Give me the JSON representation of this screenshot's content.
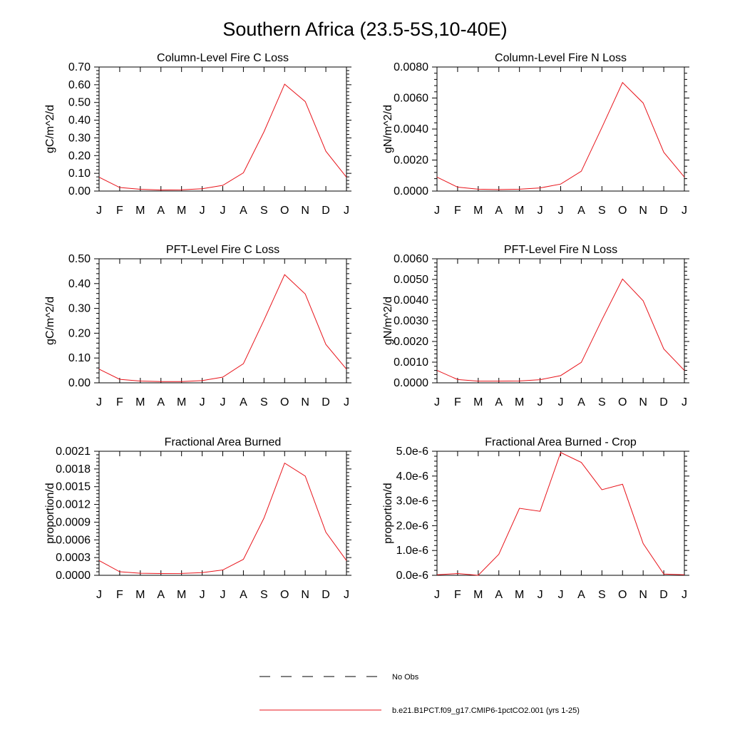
{
  "figure": {
    "title": "Southern Africa (23.5-5S,10-40E)",
    "line_color": "#e8141b",
    "legend": {
      "obs_label": "No Obs",
      "model_label": "b.e21.B1PCT.f09_g17.CMIP6-1pctCO2.001 (yrs 1-25)"
    }
  },
  "chart_data": [
    {
      "type": "line",
      "title": "Column-Level Fire C Loss",
      "ylabel": "gC/m^2/d",
      "categories": [
        "J",
        "F",
        "M",
        "A",
        "M",
        "J",
        "J",
        "A",
        "S",
        "O",
        "N",
        "D",
        "J"
      ],
      "ylim": [
        0,
        0.7
      ],
      "yticks": [
        "0.00",
        "0.10",
        "0.20",
        "0.30",
        "0.40",
        "0.50",
        "0.60",
        "0.70"
      ],
      "series": [
        {
          "values": [
            0.078,
            0.02,
            0.01,
            0.006,
            0.007,
            0.013,
            0.032,
            0.103,
            0.335,
            0.603,
            0.505,
            0.225,
            0.078
          ]
        }
      ]
    },
    {
      "type": "line",
      "title": "Column-Level Fire N Loss",
      "ylabel": "gN/m^2/d",
      "categories": [
        "J",
        "F",
        "M",
        "A",
        "M",
        "J",
        "J",
        "A",
        "S",
        "O",
        "N",
        "D",
        "J"
      ],
      "ylim": [
        0,
        0.008
      ],
      "yticks": [
        "0.0000",
        "0.0020",
        "0.0040",
        "0.0060",
        "0.0080"
      ],
      "series": [
        {
          "values": [
            0.0009,
            0.00025,
            0.00012,
            0.0001,
            0.00012,
            0.0002,
            0.00045,
            0.00128,
            0.0041,
            0.007,
            0.00568,
            0.0025,
            0.0009
          ]
        }
      ]
    },
    {
      "type": "line",
      "title": "PFT-Level Fire C Loss",
      "ylabel": "gC/m^2/d",
      "categories": [
        "J",
        "F",
        "M",
        "A",
        "M",
        "J",
        "J",
        "A",
        "S",
        "O",
        "N",
        "D",
        "J"
      ],
      "ylim": [
        0,
        0.5
      ],
      "yticks": [
        "0.00",
        "0.10",
        "0.20",
        "0.30",
        "0.40",
        "0.50"
      ],
      "series": [
        {
          "values": [
            0.055,
            0.014,
            0.007,
            0.005,
            0.005,
            0.009,
            0.023,
            0.077,
            0.253,
            0.436,
            0.358,
            0.155,
            0.055
          ]
        }
      ]
    },
    {
      "type": "line",
      "title": "PFT-Level Fire N Loss",
      "ylabel": "gN/m^2/d",
      "categories": [
        "J",
        "F",
        "M",
        "A",
        "M",
        "J",
        "J",
        "A",
        "S",
        "O",
        "N",
        "D",
        "J"
      ],
      "ylim": [
        0,
        0.006
      ],
      "yticks": [
        "0.0000",
        "0.0010",
        "0.0020",
        "0.0030",
        "0.0040",
        "0.0050",
        "0.0060"
      ],
      "series": [
        {
          "values": [
            0.0006,
            0.00016,
            8e-05,
            8e-05,
            9e-05,
            0.00015,
            0.00035,
            0.00099,
            0.00305,
            0.00502,
            0.00397,
            0.00164,
            0.0006
          ]
        }
      ]
    },
    {
      "type": "line",
      "title": "Fractional Area Burned",
      "ylabel": "proportion/d",
      "categories": [
        "J",
        "F",
        "M",
        "A",
        "M",
        "J",
        "J",
        "A",
        "S",
        "O",
        "N",
        "D",
        "J"
      ],
      "ylim": [
        0,
        0.0021
      ],
      "yticks": [
        "0.0000",
        "0.0003",
        "0.0006",
        "0.0009",
        "0.0012",
        "0.0015",
        "0.0018",
        "0.0021"
      ],
      "series": [
        {
          "values": [
            0.00025,
            6e-05,
            3.5e-05,
            3e-05,
            3.2e-05,
            4.5e-05,
            9e-05,
            0.00027,
            0.00097,
            0.0019,
            0.00168,
            0.00073,
            0.00025
          ]
        }
      ]
    },
    {
      "type": "line",
      "title": "Fractional Area Burned - Crop",
      "ylabel": "proportion/d",
      "categories": [
        "J",
        "F",
        "M",
        "A",
        "M",
        "J",
        "J",
        "A",
        "S",
        "O",
        "N",
        "D",
        "J"
      ],
      "ylim": [
        0,
        5e-06
      ],
      "yticks": [
        "0.0e-6",
        "1.0e-6",
        "2.0e-6",
        "3.0e-6",
        "4.0e-6",
        "5.0e-6"
      ],
      "series": [
        {
          "values": [
            2e-08,
            7e-08,
            0.0,
            8.5e-07,
            2.7e-06,
            2.58e-06,
            4.95e-06,
            4.55e-06,
            3.45e-06,
            3.67e-06,
            1.28e-06,
            5e-08,
            2e-08
          ]
        }
      ]
    }
  ]
}
